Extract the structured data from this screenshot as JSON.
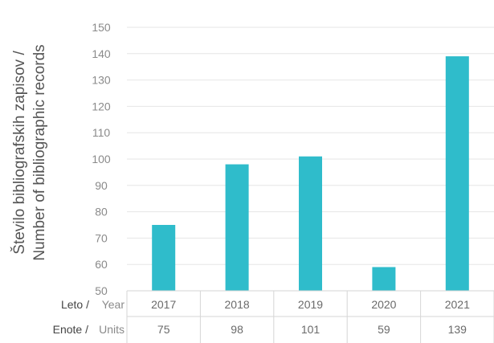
{
  "chart_data": {
    "type": "bar",
    "categories": [
      "2017",
      "2018",
      "2019",
      "2020",
      "2021"
    ],
    "values": [
      75,
      98,
      101,
      59,
      139
    ],
    "value_labels": [
      "75",
      "98",
      "101",
      "59",
      "139"
    ],
    "ylabel_line1": "Število bibliografskih zapisov  /",
    "ylabel_line2": "Number of bibliographic records",
    "ylim": [
      50,
      150
    ],
    "yticks": [
      50,
      60,
      70,
      80,
      90,
      100,
      110,
      120,
      130,
      140,
      150
    ],
    "grid": true,
    "bar_color": "#2fbccb",
    "row_headers": {
      "year_main": "Leto /",
      "year_sub": "Year",
      "units_main": "Enote /",
      "units_sub": "Units"
    }
  }
}
